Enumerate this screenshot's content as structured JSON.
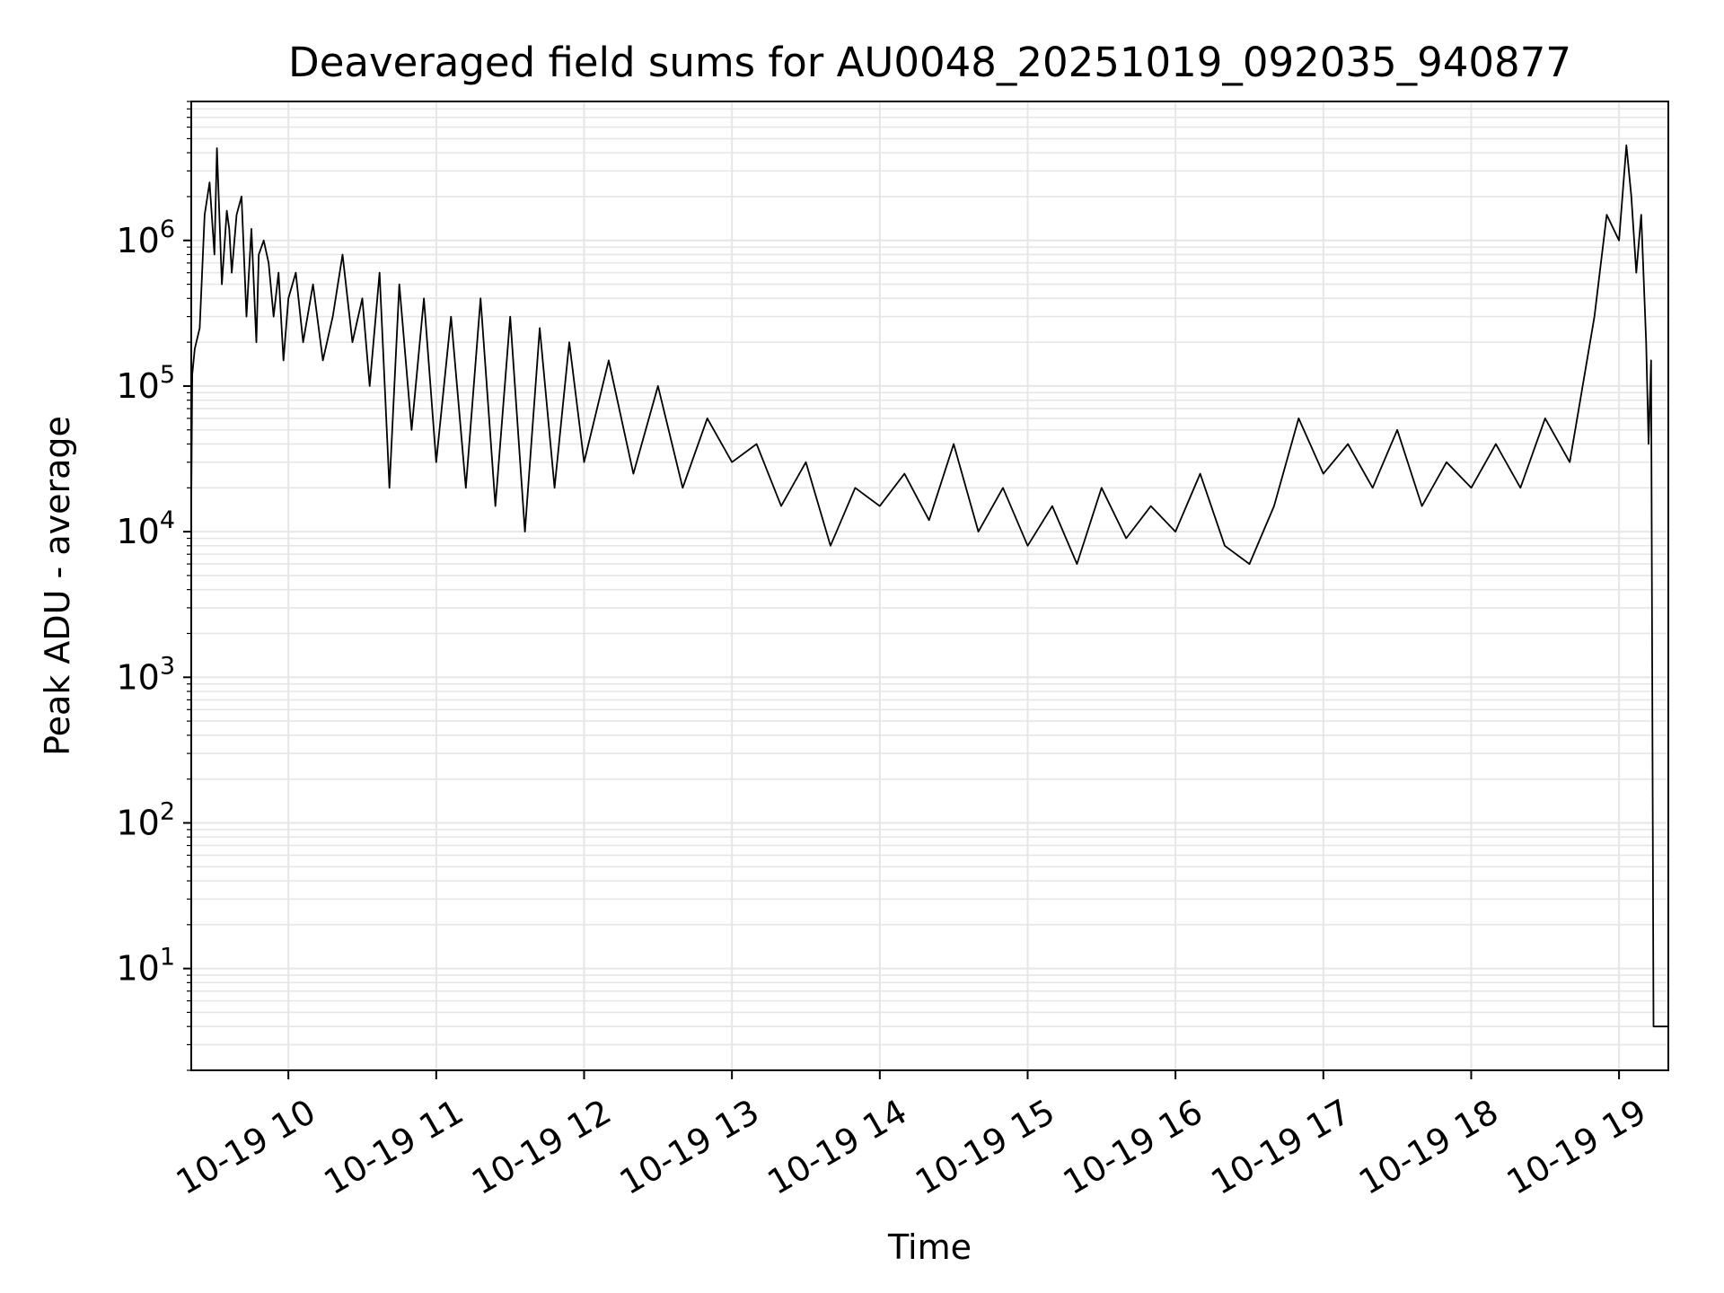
{
  "chart_data": {
    "type": "line",
    "title": "Deaveraged field sums for AU0048_20251019_092035_940877",
    "xlabel": "Time",
    "ylabel": "Peak ADU - average",
    "yscale": "log",
    "ylim": [
      2,
      9000000
    ],
    "xlim": [
      "2025-10-19T09:20:35",
      "2025-10-19T19:20:00"
    ],
    "grid": true,
    "line_color": "#000000",
    "grid_color": "#e6e6e6",
    "x_ticks": [
      {
        "value": "2025-10-19T10:00",
        "label": "10-19 10"
      },
      {
        "value": "2025-10-19T11:00",
        "label": "10-19 11"
      },
      {
        "value": "2025-10-19T12:00",
        "label": "10-19 12"
      },
      {
        "value": "2025-10-19T13:00",
        "label": "10-19 13"
      },
      {
        "value": "2025-10-19T14:00",
        "label": "10-19 14"
      },
      {
        "value": "2025-10-19T15:00",
        "label": "10-19 15"
      },
      {
        "value": "2025-10-19T16:00",
        "label": "10-19 16"
      },
      {
        "value": "2025-10-19T17:00",
        "label": "10-19 17"
      },
      {
        "value": "2025-10-19T18:00",
        "label": "10-19 18"
      },
      {
        "value": "2025-10-19T19:00",
        "label": "10-19 19"
      }
    ],
    "y_ticks": [
      {
        "value": 10,
        "base": "10",
        "exp": "1"
      },
      {
        "value": 100,
        "base": "10",
        "exp": "2"
      },
      {
        "value": 1000,
        "base": "10",
        "exp": "3"
      },
      {
        "value": 10000,
        "base": "10",
        "exp": "4"
      },
      {
        "value": 100000,
        "base": "10",
        "exp": "5"
      },
      {
        "value": 1000000,
        "base": "10",
        "exp": "6"
      }
    ],
    "series": [
      {
        "x": [
          "2025-10-19T09:20:35",
          "2025-10-19T09:21",
          "2025-10-19T09:22",
          "2025-10-19T09:24",
          "2025-10-19T09:26",
          "2025-10-19T09:28",
          "2025-10-19T09:30",
          "2025-10-19T09:31",
          "2025-10-19T09:33",
          "2025-10-19T09:35",
          "2025-10-19T09:36",
          "2025-10-19T09:37",
          "2025-10-19T09:39",
          "2025-10-19T09:41",
          "2025-10-19T09:43",
          "2025-10-19T09:45",
          "2025-10-19T09:47",
          "2025-10-19T09:48",
          "2025-10-19T09:50",
          "2025-10-19T09:52",
          "2025-10-19T09:54",
          "2025-10-19T09:56",
          "2025-10-19T09:58",
          "2025-10-19T10:00",
          "2025-10-19T10:03",
          "2025-10-19T10:06",
          "2025-10-19T10:10",
          "2025-10-19T10:14",
          "2025-10-19T10:18",
          "2025-10-19T10:22",
          "2025-10-19T10:26",
          "2025-10-19T10:30",
          "2025-10-19T10:33",
          "2025-10-19T10:37",
          "2025-10-19T10:41",
          "2025-10-19T10:45",
          "2025-10-19T10:50",
          "2025-10-19T10:55",
          "2025-10-19T11:00",
          "2025-10-19T11:06",
          "2025-10-19T11:12",
          "2025-10-19T11:18",
          "2025-10-19T11:24",
          "2025-10-19T11:30",
          "2025-10-19T11:36",
          "2025-10-19T11:42",
          "2025-10-19T11:48",
          "2025-10-19T11:54",
          "2025-10-19T12:00",
          "2025-10-19T12:10",
          "2025-10-19T12:20",
          "2025-10-19T12:30",
          "2025-10-19T12:40",
          "2025-10-19T12:50",
          "2025-10-19T13:00",
          "2025-10-19T13:10",
          "2025-10-19T13:20",
          "2025-10-19T13:30",
          "2025-10-19T13:40",
          "2025-10-19T13:50",
          "2025-10-19T14:00",
          "2025-10-19T14:10",
          "2025-10-19T14:20",
          "2025-10-19T14:30",
          "2025-10-19T14:40",
          "2025-10-19T14:50",
          "2025-10-19T15:00",
          "2025-10-19T15:10",
          "2025-10-19T15:20",
          "2025-10-19T15:30",
          "2025-10-19T15:40",
          "2025-10-19T15:50",
          "2025-10-19T16:00",
          "2025-10-19T16:10",
          "2025-10-19T16:20",
          "2025-10-19T16:30",
          "2025-10-19T16:40",
          "2025-10-19T16:50",
          "2025-10-19T17:00",
          "2025-10-19T17:10",
          "2025-10-19T17:20",
          "2025-10-19T17:30",
          "2025-10-19T17:40",
          "2025-10-19T17:50",
          "2025-10-19T18:00",
          "2025-10-19T18:10",
          "2025-10-19T18:20",
          "2025-10-19T18:30",
          "2025-10-19T18:40",
          "2025-10-19T18:50",
          "2025-10-19T18:55",
          "2025-10-19T19:00",
          "2025-10-19T19:03",
          "2025-10-19T19:05",
          "2025-10-19T19:07",
          "2025-10-19T19:09",
          "2025-10-19T19:11",
          "2025-10-19T19:12",
          "2025-10-19T19:13",
          "2025-10-19T19:14",
          "2025-10-19T19:20"
        ],
        "y": [
          15000,
          120000,
          180000,
          250000,
          1500000,
          2500000,
          800000,
          4300000,
          500000,
          1600000,
          1200000,
          600000,
          1500000,
          2000000,
          300000,
          1200000,
          200000,
          800000,
          1000000,
          700000,
          300000,
          600000,
          150000,
          400000,
          600000,
          200000,
          500000,
          150000,
          300000,
          800000,
          200000,
          400000,
          100000,
          600000,
          20000,
          500000,
          50000,
          400000,
          30000,
          300000,
          20000,
          400000,
          15000,
          300000,
          10000,
          250000,
          20000,
          200000,
          30000,
          150000,
          25000,
          100000,
          20000,
          60000,
          30000,
          40000,
          15000,
          30000,
          8000,
          20000,
          15000,
          25000,
          12000,
          40000,
          10000,
          20000,
          8000,
          15000,
          6000,
          20000,
          9000,
          15000,
          10000,
          25000,
          8000,
          6000,
          15000,
          60000,
          25000,
          40000,
          20000,
          50000,
          15000,
          30000,
          20000,
          40000,
          20000,
          60000,
          30000,
          300000,
          1500000,
          1000000,
          4500000,
          2000000,
          600000,
          1500000,
          200000,
          40000,
          150000,
          4,
          4
        ]
      }
    ]
  }
}
